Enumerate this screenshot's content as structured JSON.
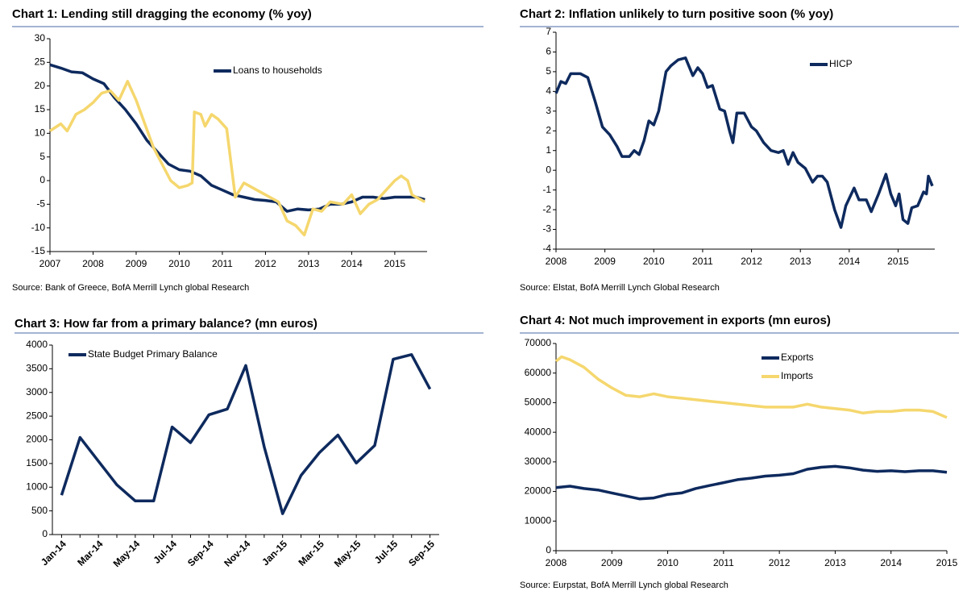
{
  "chart_data": [
    {
      "type": "line",
      "title": "Chart 1: Lending still dragging the economy (% yoy)",
      "source": "Source: Bank of Greece, BofA Merrill Lynch global Research",
      "xlim": [
        2007,
        2015.75
      ],
      "xticks": [
        2007,
        2008,
        2009,
        2010,
        2011,
        2012,
        2013,
        2014,
        2015
      ],
      "ylim": [
        -15,
        30
      ],
      "yticks": [
        -15,
        -10,
        -5,
        0,
        5,
        10,
        15,
        20,
        25,
        30
      ],
      "series": [
        {
          "name": "Loans to households",
          "color": "#0e2a5e",
          "x": [
            2007.0,
            2007.25,
            2007.5,
            2007.75,
            2008.0,
            2008.25,
            2008.5,
            2008.75,
            2009.0,
            2009.25,
            2009.5,
            2009.75,
            2010.0,
            2010.25,
            2010.5,
            2010.75,
            2011.0,
            2011.25,
            2011.5,
            2011.75,
            2012.0,
            2012.25,
            2012.5,
            2012.75,
            2013.0,
            2013.25,
            2013.5,
            2013.75,
            2014.0,
            2014.25,
            2014.5,
            2014.75,
            2015.0,
            2015.25,
            2015.5,
            2015.7
          ],
          "values": [
            24.5,
            23.8,
            23,
            22.8,
            21.5,
            20.5,
            17.5,
            15,
            12,
            8.5,
            6,
            3.5,
            2.3,
            2,
            1,
            -1,
            -2,
            -3,
            -3.5,
            -4,
            -4.2,
            -4.5,
            -6.5,
            -6,
            -6.2,
            -6,
            -5,
            -5,
            -4.5,
            -3.5,
            -3.5,
            -3.8,
            -3.5,
            -3.5,
            -3.5,
            -4
          ]
        },
        {
          "color": "#f5d76e",
          "x": [
            2007.0,
            2007.25,
            2007.4,
            2007.6,
            2007.8,
            2008.0,
            2008.2,
            2008.4,
            2008.6,
            2008.8,
            2009.0,
            2009.2,
            2009.4,
            2009.6,
            2009.8,
            2010.0,
            2010.2,
            2010.3,
            2010.35,
            2010.5,
            2010.6,
            2010.75,
            2010.9,
            2011.1,
            2011.3,
            2011.5,
            2011.7,
            2011.9,
            2012.1,
            2012.3,
            2012.5,
            2012.7,
            2012.9,
            2013.1,
            2013.3,
            2013.5,
            2013.8,
            2014.0,
            2014.2,
            2014.4,
            2014.6,
            2014.8,
            2015.0,
            2015.15,
            2015.3,
            2015.4,
            2015.7
          ],
          "values": [
            10.5,
            12,
            10.5,
            14,
            15,
            16.5,
            18.5,
            19,
            17,
            21,
            17,
            12,
            7,
            3.5,
            0,
            -1.5,
            -1,
            -0.5,
            14.5,
            14,
            11.5,
            14,
            13,
            11,
            -3.5,
            -0.5,
            -1.5,
            -2.5,
            -3.5,
            -4.5,
            -8.5,
            -9.5,
            -11.5,
            -6,
            -6.5,
            -4.5,
            -5,
            -3,
            -7,
            -5,
            -4,
            -2,
            0,
            1,
            0,
            -3,
            -4.5
          ]
        }
      ]
    },
    {
      "type": "line",
      "title": "Chart 2: Inflation unlikely to turn positive soon (% yoy)",
      "source": "Source: Elstat, BofA Merrill Lynch Global Research",
      "xlim": [
        2008,
        2015.75
      ],
      "xticks": [
        2008,
        2009,
        2010,
        2011,
        2012,
        2013,
        2014,
        2015
      ],
      "ylim": [
        -4,
        7
      ],
      "yticks": [
        -4,
        -3,
        -2,
        -1,
        0,
        1,
        2,
        3,
        4,
        5,
        6,
        7
      ],
      "series": [
        {
          "name": "HICP",
          "color": "#0e2a5e",
          "x": [
            2008.0,
            2008.1,
            2008.2,
            2008.3,
            2008.5,
            2008.65,
            2008.8,
            2008.95,
            2009.1,
            2009.25,
            2009.35,
            2009.5,
            2009.6,
            2009.7,
            2009.8,
            2009.9,
            2010.0,
            2010.1,
            2010.25,
            2010.35,
            2010.5,
            2010.65,
            2010.8,
            2010.9,
            2011.0,
            2011.1,
            2011.2,
            2011.35,
            2011.45,
            2011.55,
            2011.62,
            2011.7,
            2011.85,
            2012.0,
            2012.1,
            2012.25,
            2012.4,
            2012.55,
            2012.65,
            2012.75,
            2012.85,
            2012.95,
            2013.1,
            2013.25,
            2013.35,
            2013.45,
            2013.55,
            2013.7,
            2013.83,
            2013.93,
            2014.1,
            2014.2,
            2014.35,
            2014.45,
            2014.6,
            2014.75,
            2014.85,
            2014.95,
            2015.02,
            2015.1,
            2015.2,
            2015.28,
            2015.4,
            2015.52,
            2015.58,
            2015.62,
            2015.7
          ],
          "values": [
            3.9,
            4.5,
            4.4,
            4.9,
            4.9,
            4.7,
            3.5,
            2.2,
            1.8,
            1.2,
            0.7,
            0.7,
            1,
            0.8,
            1.5,
            2.5,
            2.3,
            3,
            5,
            5.3,
            5.6,
            5.7,
            4.8,
            5.2,
            4.9,
            4.2,
            4.3,
            3.1,
            3,
            2,
            1.4,
            2.9,
            2.9,
            2.2,
            2,
            1.4,
            1,
            0.9,
            1,
            0.3,
            0.9,
            0.4,
            0.1,
            -0.6,
            -0.3,
            -0.3,
            -0.6,
            -2,
            -2.9,
            -1.8,
            -0.9,
            -1.5,
            -1.5,
            -2.1,
            -1.2,
            -0.2,
            -1.2,
            -1.8,
            -1.2,
            -2.5,
            -2.7,
            -1.9,
            -1.8,
            -1.1,
            -1.2,
            -0.3,
            -0.8
          ]
        }
      ]
    },
    {
      "type": "line",
      "title": "Chart 3: How far from a primary balance? (mn euros)",
      "categories": [
        "Jan-14",
        null,
        "Mar-14",
        null,
        "May-14",
        null,
        "Jul-14",
        null,
        "Sep-14",
        null,
        "Nov-14",
        null,
        "Jan-15",
        null,
        "Mar-15",
        null,
        "May-15",
        null,
        "Jul-15",
        null,
        "Sep-15"
      ],
      "ylim": [
        0,
        4000
      ],
      "yticks": [
        0,
        500,
        1000,
        1500,
        2000,
        2500,
        3000,
        3500,
        4000
      ],
      "series": [
        {
          "name": "State Budget Primary Balance",
          "color": "#0e2a5e",
          "values": [
            830,
            2050,
            1550,
            1050,
            710,
            710,
            2270,
            1940,
            2530,
            2650,
            3570,
            1850,
            440,
            1250,
            1730,
            2100,
            1510,
            1880,
            3700,
            3800,
            3070
          ]
        }
      ]
    },
    {
      "type": "line",
      "title": "Chart 4: Not much improvement in exports (mn euros)",
      "source": "Source: Eurpstat, BofA Merrill Lynch global Research",
      "xlim": [
        2008,
        2015
      ],
      "xticks": [
        2008,
        2009,
        2010,
        2011,
        2012,
        2013,
        2014,
        2015
      ],
      "ylim": [
        0,
        70000
      ],
      "yticks": [
        0,
        10000,
        20000,
        30000,
        40000,
        50000,
        60000,
        70000
      ],
      "series": [
        {
          "name": "Exports",
          "color": "#0e2a5e",
          "x": [
            2008.0,
            2008.25,
            2008.5,
            2008.75,
            2009.0,
            2009.25,
            2009.5,
            2009.75,
            2010.0,
            2010.25,
            2010.5,
            2010.75,
            2011.0,
            2011.25,
            2011.5,
            2011.75,
            2012.0,
            2012.25,
            2012.5,
            2012.75,
            2013.0,
            2013.25,
            2013.5,
            2013.75,
            2014.0,
            2014.25,
            2014.5,
            2014.75,
            2015.0
          ],
          "values": [
            21300,
            21800,
            21000,
            20500,
            19500,
            18500,
            17500,
            17800,
            19000,
            19500,
            21000,
            22000,
            23000,
            24000,
            24500,
            25200,
            25500,
            26000,
            27500,
            28200,
            28500,
            28000,
            27200,
            26800,
            27000,
            26700,
            27000,
            27000,
            26500
          ]
        },
        {
          "name": "Imports",
          "color": "#f5d76e",
          "x": [
            2008.0,
            2008.1,
            2008.25,
            2008.5,
            2008.75,
            2009.0,
            2009.25,
            2009.5,
            2009.75,
            2010.0,
            2010.25,
            2010.5,
            2010.75,
            2011.0,
            2011.25,
            2011.5,
            2011.75,
            2012.0,
            2012.25,
            2012.5,
            2012.75,
            2013.0,
            2013.25,
            2013.5,
            2013.75,
            2014.0,
            2014.25,
            2014.5,
            2014.75,
            2015.0
          ],
          "values": [
            64000,
            65500,
            64500,
            62000,
            58000,
            55000,
            52500,
            52000,
            53000,
            52000,
            51500,
            51000,
            50500,
            50000,
            49500,
            49000,
            48500,
            48500,
            48500,
            49500,
            48500,
            48000,
            47500,
            46500,
            47000,
            47000,
            47500,
            47500,
            47000,
            45000
          ]
        }
      ]
    }
  ]
}
